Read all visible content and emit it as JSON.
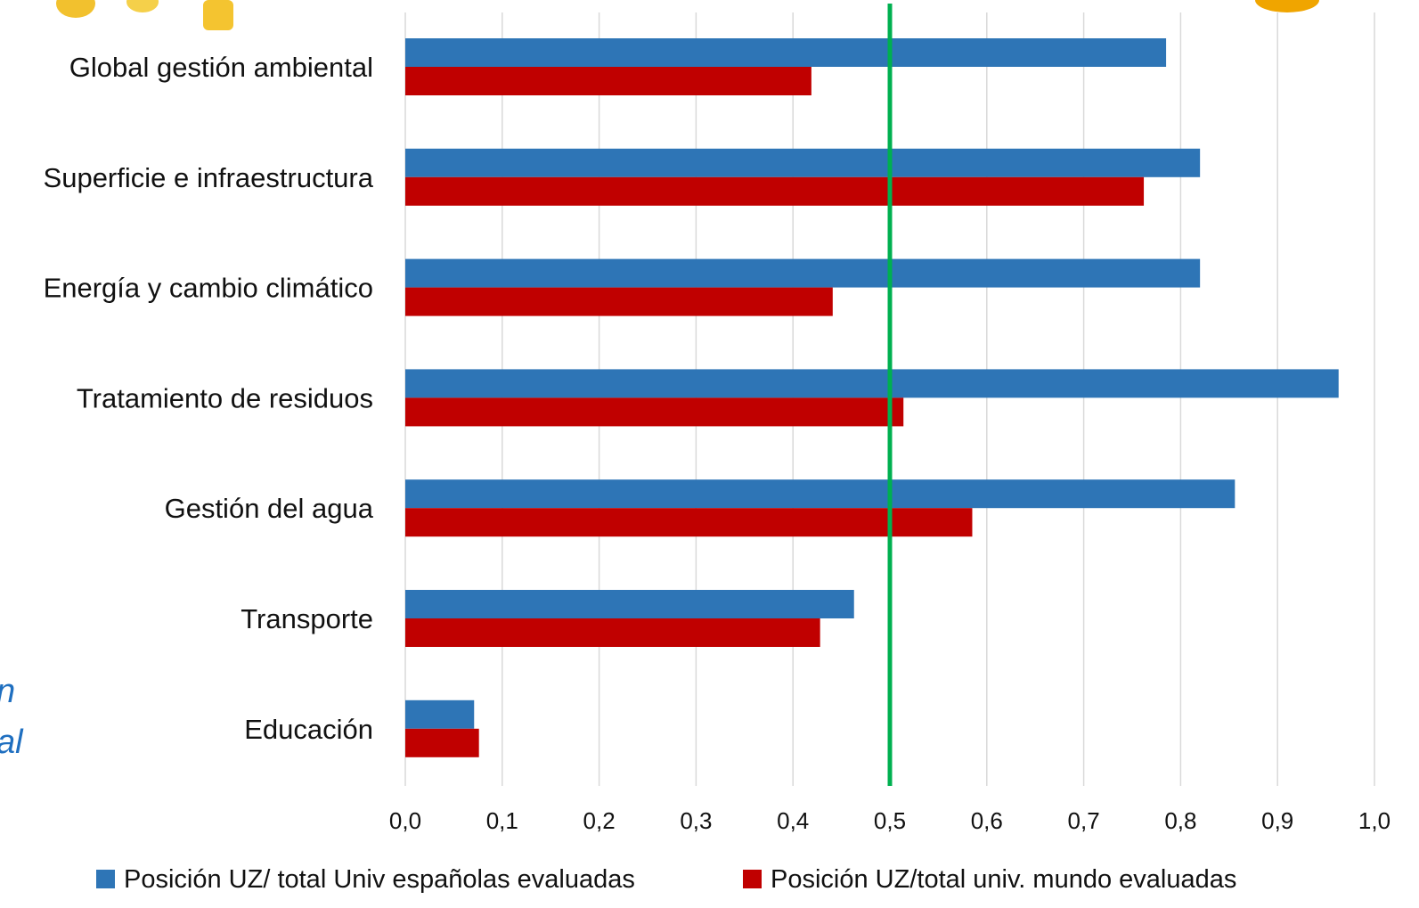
{
  "chart_data": {
    "type": "bar",
    "orientation": "horizontal",
    "categories": [
      "Global gestión ambiental",
      "Superficie e infraestructura",
      "Energía y cambio climático",
      "Tratamiento de residuos",
      "Gestión del agua",
      "Transporte",
      "Educación"
    ],
    "series": [
      {
        "name": "Posición UZ/ total Univ españolas evaluadas",
        "color": "#2e75b6",
        "values": [
          0.785,
          0.82,
          0.82,
          0.963,
          0.856,
          0.463,
          0.071
        ]
      },
      {
        "name": "Posición UZ/total univ. mundo evaluadas",
        "color": "#c00000",
        "values": [
          0.419,
          0.762,
          0.441,
          0.514,
          0.585,
          0.428,
          0.076
        ]
      }
    ],
    "xlim": [
      0,
      1.0
    ],
    "xticks": [
      "0,0",
      "0,1",
      "0,2",
      "0,3",
      "0,4",
      "0,5",
      "0,6",
      "0,7",
      "0,8",
      "0,9",
      "1,0"
    ],
    "reference_line": {
      "value": 0.5,
      "color": "#00b050"
    },
    "grid": "vertical",
    "legend_position": "bottom",
    "title": "",
    "xlabel": "",
    "ylabel": ""
  },
  "side_fragments": [
    "n",
    "al"
  ]
}
